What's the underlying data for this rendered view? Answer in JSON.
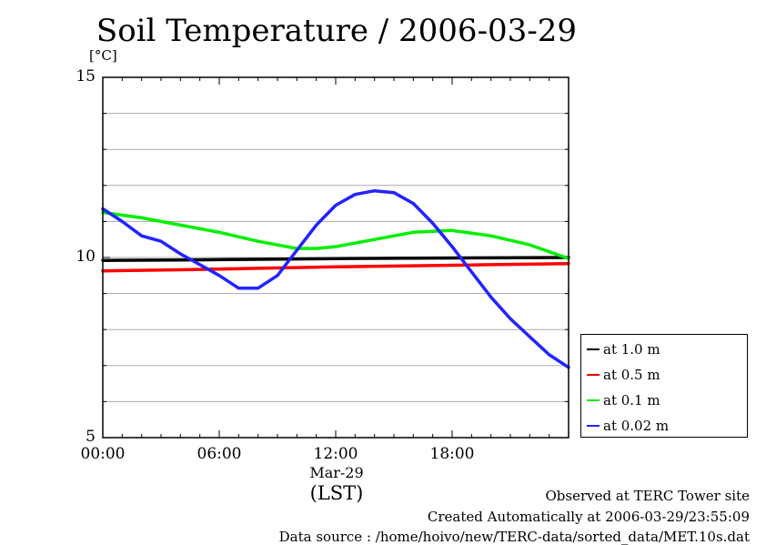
{
  "title": "Soil Temperature / 2006-03-29",
  "unit_label": "[°C]",
  "footer": {
    "line1": "Observed at TERC Tower site",
    "line2": "Created Automatically at 2006-03-29/23:55:09",
    "line3": "Data source : /home/hoivo/new/TERC-data/sorted_data/MET.10s.dat"
  },
  "x_date_label": "Mar-29",
  "x_tz_label": "(LST)",
  "chart_data": {
    "type": "line",
    "title": "Soil Temperature / 2006-03-29",
    "xlabel": "(LST)",
    "ylabel": "[°C]",
    "xlim": [
      0,
      24
    ],
    "ylim": [
      5,
      15
    ],
    "x_tick_labels": [
      "00:00",
      "06:00",
      "12:00",
      "18:00"
    ],
    "x_ticks": [
      0,
      6,
      12,
      18
    ],
    "y_tick_labels": [
      "5",
      "10",
      "15"
    ],
    "y_ticks": [
      5,
      10,
      15
    ],
    "grid": true,
    "legend_position": "right-bottom",
    "series": [
      {
        "name": "at 1.0 m",
        "color": "#000000",
        "x": [
          0,
          4,
          8,
          12,
          16,
          20,
          24
        ],
        "y": [
          9.92,
          9.93,
          9.95,
          9.97,
          9.98,
          9.99,
          10.0
        ]
      },
      {
        "name": "at 0.5 m",
        "color": "#ff0000",
        "x": [
          0,
          4,
          8,
          12,
          16,
          20,
          24
        ],
        "y": [
          9.63,
          9.66,
          9.7,
          9.74,
          9.77,
          9.8,
          9.83
        ]
      },
      {
        "name": "at 0.1 m",
        "color": "#00ee00",
        "x": [
          0,
          2,
          4,
          6,
          8,
          10,
          11,
          12,
          14,
          16,
          18,
          20,
          22,
          24
        ],
        "y": [
          11.25,
          11.1,
          10.9,
          10.7,
          10.45,
          10.25,
          10.25,
          10.3,
          10.5,
          10.7,
          10.75,
          10.6,
          10.35,
          9.97
        ]
      },
      {
        "name": "at 0.02 m",
        "color": "#2222ff",
        "x": [
          0,
          1,
          2,
          3,
          4,
          5,
          6,
          7,
          8,
          9,
          10,
          11,
          12,
          13,
          14,
          15,
          16,
          17,
          18,
          19,
          20,
          21,
          22,
          23,
          24
        ],
        "y": [
          11.35,
          11.0,
          10.6,
          10.45,
          10.1,
          9.8,
          9.5,
          9.15,
          9.15,
          9.5,
          10.2,
          10.9,
          11.45,
          11.75,
          11.85,
          11.8,
          11.5,
          10.95,
          10.3,
          9.6,
          8.9,
          8.3,
          7.8,
          7.3,
          6.95
        ]
      }
    ]
  }
}
